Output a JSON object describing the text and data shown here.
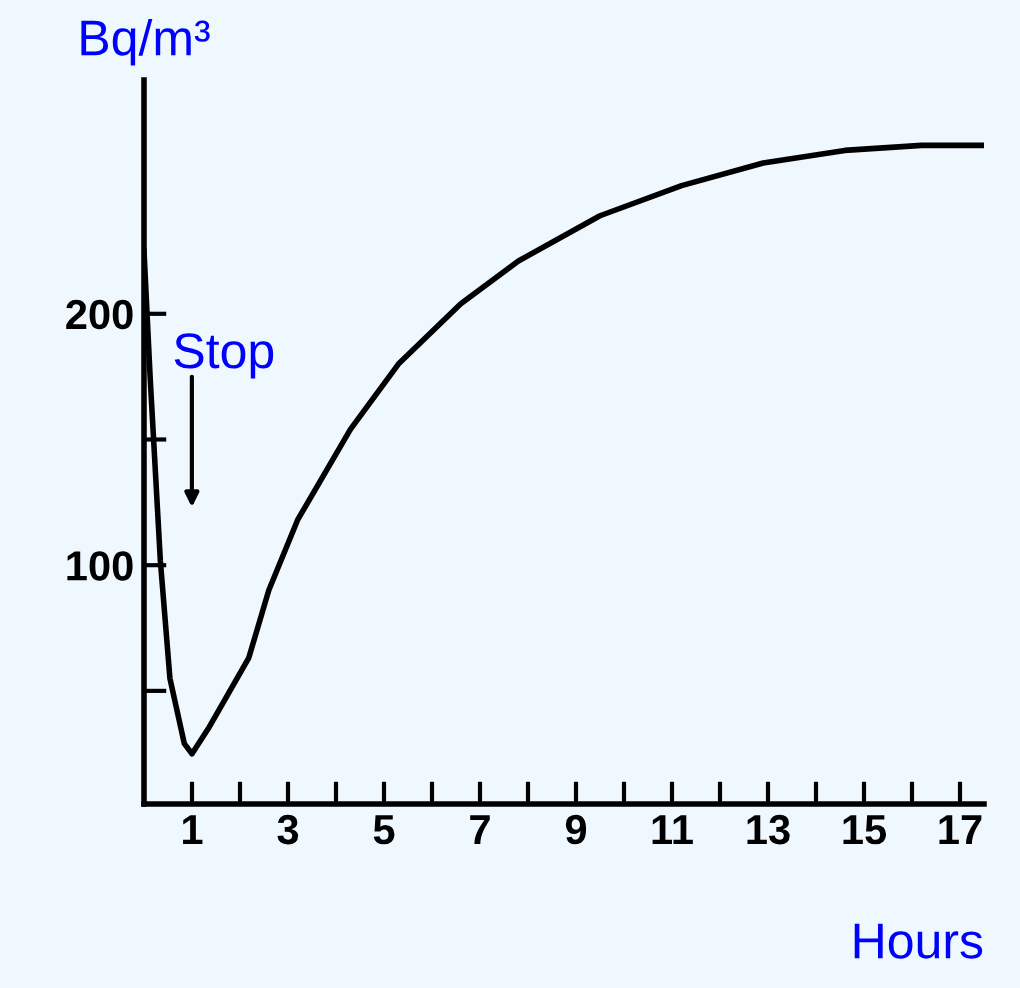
{
  "chart_data": {
    "type": "line",
    "xlabel": "Hours",
    "ylabel": "Bq/m³",
    "x": [
      0.0,
      0.13,
      0.34,
      0.54,
      0.84,
      1.0,
      1.34,
      2.18,
      2.6,
      3.2,
      4.3,
      5.3,
      6.6,
      7.8,
      9.5,
      11.2,
      12.9,
      14.6,
      16.2,
      17.5
    ],
    "series": [
      {
        "color": "#000000",
        "values": [
          225,
          174,
          102,
          55,
          29,
          25,
          35,
          63,
          90,
          118,
          154,
          180,
          204,
          221,
          239,
          251,
          260,
          265,
          267,
          267
        ]
      }
    ],
    "xlim": [
      0,
      17.5
    ],
    "ylim": [
      5,
      293
    ],
    "xticks": [
      1,
      {
        "value": 2,
        "label": null
      },
      3,
      {
        "value": 4,
        "label": null
      },
      5,
      {
        "value": 6,
        "label": null
      },
      7,
      {
        "value": 8,
        "label": null
      },
      9,
      {
        "value": 10,
        "label": null
      },
      11,
      {
        "value": 12,
        "label": null
      },
      13,
      {
        "value": 14,
        "label": null
      },
      15,
      {
        "value": 16,
        "label": null
      },
      17
    ],
    "yticks": [
      {
        "value": 50,
        "label": null
      },
      100,
      {
        "value": 150,
        "label": null
      },
      200
    ],
    "annotations": [
      "Stop"
    ],
    "grid": false,
    "legend": false,
    "marker": "none",
    "line_style": "solid"
  }
}
